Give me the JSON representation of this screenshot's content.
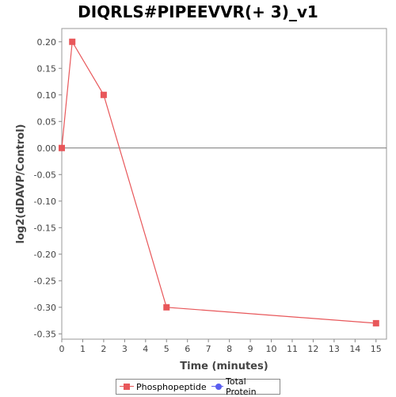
{
  "chart_data": {
    "type": "line",
    "title": "DIQRLS#PIPEEVVR(+ 3)_v1",
    "xlabel": "Time (minutes)",
    "ylabel": "log2(dDAVP/Control)",
    "xlim": [
      0,
      15.5
    ],
    "ylim": [
      -0.36,
      0.225
    ],
    "x_ticks": [
      0,
      1,
      2,
      3,
      4,
      5,
      6,
      7,
      8,
      9,
      10,
      11,
      12,
      13,
      14,
      15
    ],
    "y_ticks": [
      0.2,
      0.15,
      0.1,
      0.05,
      0.0,
      -0.05,
      -0.1,
      -0.15,
      -0.2,
      -0.25,
      -0.3,
      -0.35
    ],
    "y_tick_labels": [
      "0.20",
      "0.15",
      "0.10",
      "0.05",
      "0.00",
      "-0.05",
      "-0.10",
      "-0.15",
      "-0.20",
      "-0.25",
      "-0.30",
      "-0.35"
    ],
    "grid": false,
    "zero_line": true,
    "legend_position": "bottom",
    "series": [
      {
        "name": "Phosphopeptide",
        "color": "#e8575a",
        "marker": "square",
        "x": [
          0,
          0.5,
          2,
          5,
          15
        ],
        "y": [
          0.0,
          0.2,
          0.1,
          -0.3,
          -0.33
        ]
      },
      {
        "name": "Total Protein",
        "color": "#5a5ef0",
        "marker": "circle",
        "x": [],
        "y": []
      }
    ]
  }
}
